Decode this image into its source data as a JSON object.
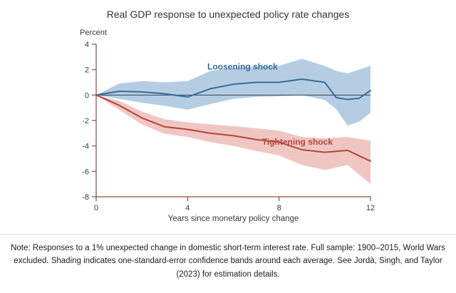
{
  "page": {
    "note": "Note: Responses to a 1% unexpected change in domestic short-term interest rate. Full sample: 1900–2015, World Wars excluded. Shading indicates one-standard-error confidence bands around each average. See Jordà, Singh, and Taylor (2023) for estimation details."
  },
  "chart_data": {
    "type": "line",
    "title": "Real GDP response to unexpected policy rate changes",
    "ylabel": "Percent",
    "xlabel": "Years since monetary policy change",
    "xlim": [
      0,
      12
    ],
    "ylim": [
      -8,
      4
    ],
    "xticks": [
      0,
      4,
      8,
      12
    ],
    "yticks": [
      4,
      2,
      0,
      -2,
      -4,
      -6,
      -8
    ],
    "grid": false,
    "legend_position": "inline-annotations",
    "axis_color": "#8d4a3f",
    "zero_line_color": "#33414c",
    "tick_label_color": "#3a3a3a",
    "series": [
      {
        "name": "Loosening shock",
        "color": "#356d99",
        "band_color": "#b5cde3",
        "x": [
          0,
          1,
          2,
          3,
          4,
          5,
          6,
          7,
          8,
          9,
          10,
          10.5,
          11,
          11.5,
          12
        ],
        "values": [
          0,
          0.3,
          0.25,
          0.1,
          -0.15,
          0.5,
          0.85,
          1.0,
          1.0,
          1.25,
          1.0,
          -0.2,
          -0.35,
          -0.25,
          0.35
        ],
        "band_upper": [
          0,
          0.9,
          1.1,
          1.0,
          1.1,
          1.9,
          2.15,
          2.25,
          2.3,
          2.85,
          2.3,
          1.9,
          1.7,
          2.0,
          2.3
        ],
        "band_lower": [
          0,
          -0.3,
          -0.6,
          -0.85,
          -1.15,
          -0.7,
          -0.3,
          -0.15,
          -0.1,
          0.0,
          -0.4,
          -1.1,
          -2.4,
          -2.1,
          -1.4
        ]
      },
      {
        "name": "Tightening shock",
        "color": "#b6453e",
        "band_color": "#f0c6c2",
        "x": [
          0,
          1,
          2,
          3,
          4,
          5,
          6,
          7,
          8,
          9,
          10,
          11,
          12
        ],
        "values": [
          0,
          -0.8,
          -1.8,
          -2.5,
          -2.7,
          -3.0,
          -3.2,
          -3.5,
          -3.7,
          -4.3,
          -4.5,
          -4.35,
          -5.2
        ],
        "band_upper": [
          0,
          -0.45,
          -1.3,
          -1.9,
          -2.15,
          -2.3,
          -2.45,
          -2.6,
          -2.8,
          -3.3,
          -3.4,
          -3.3,
          -3.6
        ],
        "band_lower": [
          0,
          -1.15,
          -2.3,
          -3.05,
          -3.3,
          -3.7,
          -4.0,
          -4.4,
          -4.75,
          -5.5,
          -5.9,
          -5.5,
          -7.0
        ]
      }
    ],
    "annotations": [
      {
        "text": "Loosening shock",
        "x": 6.4,
        "y": 2.0,
        "color": "#356d99"
      },
      {
        "text": "Tightening shock",
        "x": 8.8,
        "y": -3.9,
        "color": "#b6453e"
      }
    ]
  }
}
